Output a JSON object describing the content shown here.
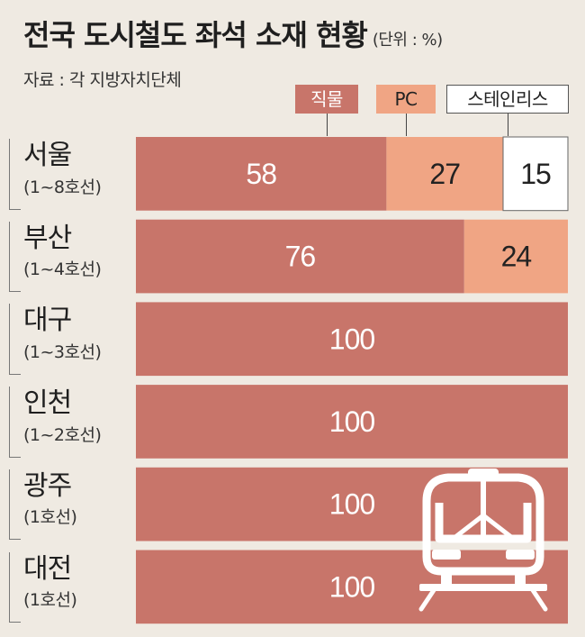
{
  "header": {
    "title": "전국 도시철도 좌석 소재 현황",
    "unit": "(단위 : %)",
    "source": "자료 : 각 지방자치단체"
  },
  "colors": {
    "fabric": "#c8756a",
    "pc": "#f0a584",
    "stainless": "#ffffff",
    "background": "#efeae2"
  },
  "icon": "train-icon",
  "chart_data": {
    "type": "bar",
    "stacked": true,
    "orientation": "horizontal",
    "title": "전국 도시철도 좌석 소재 현황",
    "unit": "(단위 : %)",
    "xlim": [
      0,
      100
    ],
    "categories": [
      "서울",
      "부산",
      "대구",
      "인천",
      "광주",
      "대전"
    ],
    "sublabels": [
      "(1~8호선)",
      "(1~4호선)",
      "(1~3호선)",
      "(1~2호선)",
      "(1호선)",
      "(1호선)"
    ],
    "legend": [
      "직물",
      "PC",
      "스테인리스"
    ],
    "series": [
      {
        "name": "직물",
        "values": [
          58,
          76,
          100,
          100,
          100,
          100
        ]
      },
      {
        "name": "PC",
        "values": [
          27,
          24,
          0,
          0,
          0,
          0
        ]
      },
      {
        "name": "스테인리스",
        "values": [
          15,
          0,
          0,
          0,
          0,
          0
        ]
      }
    ]
  }
}
